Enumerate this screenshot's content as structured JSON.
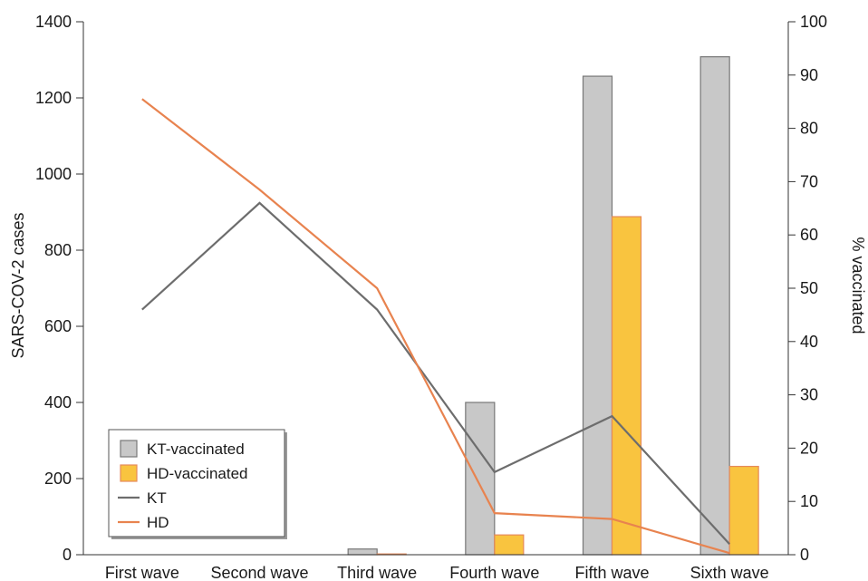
{
  "chart_data": {
    "type": "bar",
    "categories": [
      "First wave",
      "Second wave",
      "Third wave",
      "Fourth wave",
      "Fifth wave",
      "Sixth wave"
    ],
    "ylabel": "SARS-COV-2 cases",
    "y2label": "% vaccinated",
    "ylim": [
      0,
      1400
    ],
    "y2lim": [
      0,
      100
    ],
    "yticks": [
      0,
      200,
      400,
      600,
      800,
      1000,
      1200,
      1400
    ],
    "y2ticks": [
      0,
      10,
      20,
      30,
      40,
      50,
      60,
      70,
      80,
      90,
      100
    ],
    "grid": false,
    "legend_position": "bottom-left",
    "series": [
      {
        "name": "KT-vaccinated",
        "kind": "bar",
        "axis": "left",
        "color": "#c8c8c8",
        "stroke": "#777777",
        "values": [
          0,
          0,
          15,
          400,
          1257,
          1308
        ]
      },
      {
        "name": "HD-vaccinated",
        "kind": "bar",
        "axis": "left",
        "color": "#f9c43f",
        "stroke": "#e58a5a",
        "values": [
          0,
          0,
          2,
          52,
          888,
          232
        ]
      },
      {
        "name": "KT",
        "kind": "line",
        "axis": "right",
        "color": "#6d6d6d",
        "values": [
          46,
          66,
          46,
          15.5,
          26,
          2
        ]
      },
      {
        "name": "HD",
        "kind": "line",
        "axis": "right",
        "color": "#e8834f",
        "values": [
          85.5,
          68.5,
          50,
          7.8,
          6.7,
          0.3
        ]
      }
    ]
  }
}
